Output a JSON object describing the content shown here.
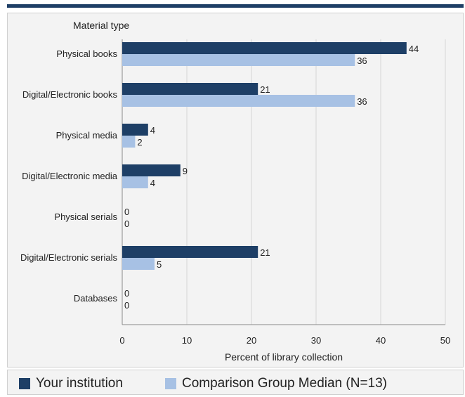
{
  "chart_data": {
    "type": "bar",
    "orientation": "horizontal",
    "y_axis_title": "Material type",
    "xlabel": "Percent of library collection",
    "categories": [
      "Physical books",
      "Digital/Electronic books",
      "Physical media",
      "Digital/Electronic media",
      "Physical serials",
      "Digital/Electronic serials",
      "Databases"
    ],
    "series": [
      {
        "name": "Your institution",
        "values": [
          44,
          21,
          4,
          9,
          0,
          21,
          0
        ],
        "color": "#1e3f66"
      },
      {
        "name": "Comparison Group Median (N=13)",
        "values": [
          36,
          36,
          2,
          4,
          0,
          5,
          0
        ],
        "color": "#a7c1e4"
      }
    ],
    "xlim": [
      0,
      50
    ],
    "xticks": [
      0,
      10,
      20,
      30,
      40,
      50
    ],
    "grid": true,
    "legend_position": "bottom"
  }
}
